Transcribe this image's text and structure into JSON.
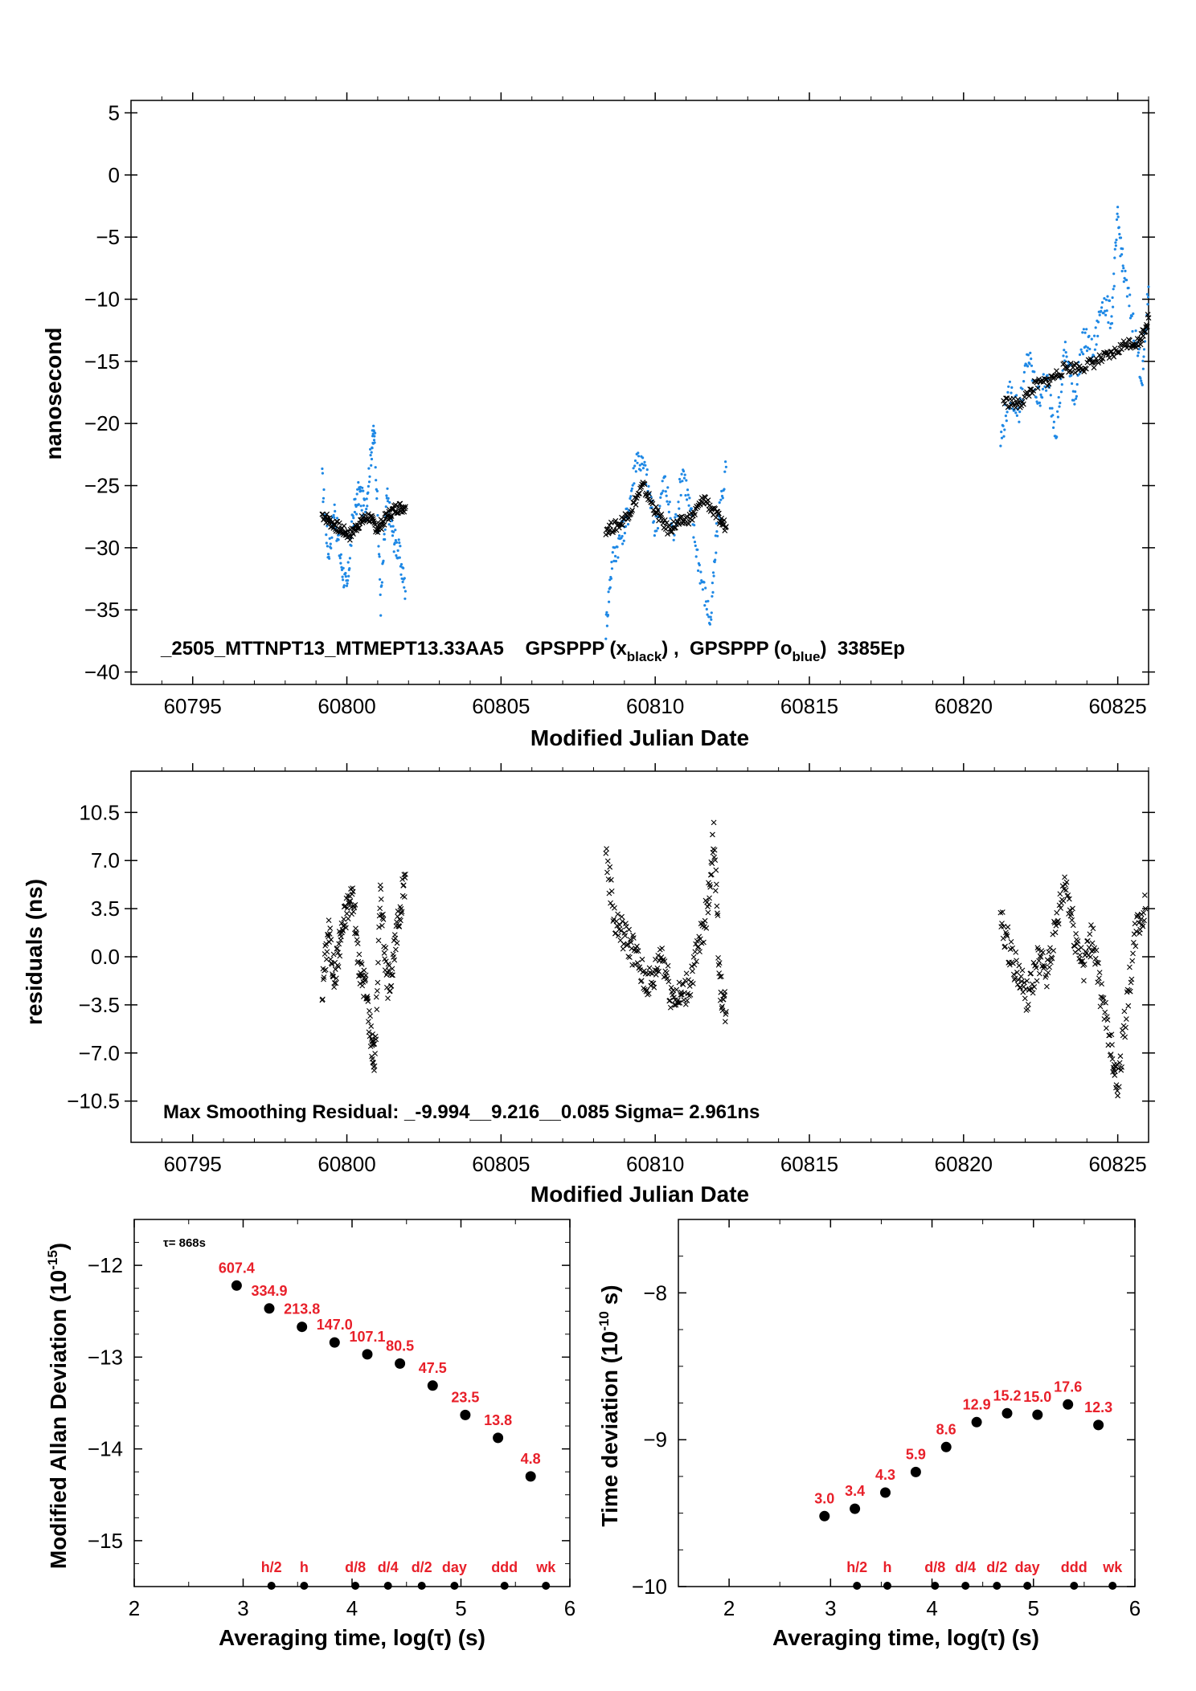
{
  "chart_data": [
    {
      "type": "scatter",
      "title": "",
      "annotation_main": "_2505_MTTNPT13_MTMEPT13.33AA5    GPSPPP (x",
      "annotation_sub1": "black",
      "annotation_mid": ") ,  GPSPPP (o",
      "annotation_sub2": "blue",
      "annotation_end": ")  3385Ep",
      "xlabel": "Modified Julian Date",
      "ylabel": "nanosecond",
      "xlim": [
        60793,
        60826
      ],
      "ylim": [
        -41,
        6
      ],
      "xticks": [
        "60795",
        "60800",
        "60805",
        "60810",
        "60815",
        "60820",
        "60825"
      ],
      "yticks": [
        "5",
        "0",
        "−5",
        "−10",
        "−15",
        "−20",
        "−25",
        "−30",
        "−35",
        "−40"
      ],
      "legend": "none",
      "grid": false,
      "colors": {
        "black": "#000000",
        "blue": "#1e88e5"
      },
      "series": [
        {
          "marker": "x",
          "color": "black",
          "segments": [
            {
              "x": [
                60799.2,
                60799.5,
                60799.8,
                60800.1,
                60800.4,
                60800.7,
                60801.0,
                60801.3,
                60801.6,
                60801.9
              ],
              "y": [
                -27.3,
                -28.0,
                -28.5,
                -29.0,
                -28.0,
                -27.5,
                -28.5,
                -27.5,
                -26.8,
                -26.7
              ]
            },
            {
              "x": [
                60808.4,
                60808.8,
                60809.2,
                60809.6,
                60810.0,
                60810.4,
                60810.8,
                60811.2,
                60811.6,
                60812.0,
                60812.3
              ],
              "y": [
                -28.5,
                -28.2,
                -27.0,
                -25.0,
                -27.0,
                -28.5,
                -28.0,
                -27.5,
                -26.0,
                -27.5,
                -28.3
              ]
            },
            {
              "x": [
                60821.3,
                60821.8,
                60822.3,
                60822.8,
                60823.3,
                60823.8,
                60824.3,
                60824.8,
                60825.3,
                60825.7,
                60826.0
              ],
              "y": [
                -18.2,
                -18.5,
                -17.0,
                -16.5,
                -15.5,
                -15.5,
                -15.0,
                -14.5,
                -13.5,
                -13.5,
                -11.5
              ]
            }
          ]
        },
        {
          "marker": "o",
          "color": "blue",
          "segments": [
            {
              "x": [
                60799.2,
                60799.4,
                60799.6,
                60799.8,
                60800.0,
                60800.2,
                60800.4,
                60800.6,
                60800.8,
                60800.9,
                60801.1,
                60801.3,
                60801.5,
                60801.7,
                60801.9
              ],
              "y": [
                -24.5,
                -30.5,
                -27.0,
                -31.0,
                -33.5,
                -27.5,
                -25.5,
                -27.0,
                -22.0,
                -20.5,
                -34.5,
                -26.0,
                -29.0,
                -30.5,
                -33.5
              ]
            },
            {
              "x": [
                60808.4,
                60808.6,
                60808.9,
                60809.1,
                60809.4,
                60809.7,
                60810.0,
                60810.3,
                60810.6,
                60810.9,
                60811.2,
                60811.5,
                60811.8,
                60812.0,
                60812.3
              ],
              "y": [
                -36.5,
                -31.0,
                -29.0,
                -27.5,
                -22.5,
                -24.0,
                -28.5,
                -24.5,
                -29.0,
                -23.5,
                -28.0,
                -32.5,
                -36.0,
                -28.5,
                -23.5
              ]
            },
            {
              "x": [
                60821.2,
                60821.5,
                60821.8,
                60822.1,
                60822.4,
                60822.7,
                60823.0,
                60823.3,
                60823.6,
                60823.9,
                60824.2,
                60824.5,
                60824.8,
                60825.0,
                60825.2,
                60825.5,
                60825.8,
                60826.0
              ],
              "y": [
                -21.5,
                -17.5,
                -19.0,
                -14.5,
                -18.0,
                -16.5,
                -20.5,
                -14.0,
                -18.0,
                -13.0,
                -14.5,
                -10.0,
                -11.5,
                -3.5,
                -8.0,
                -12.0,
                -16.5,
                -9.0
              ]
            }
          ]
        }
      ]
    },
    {
      "type": "scatter",
      "title": "",
      "annotation": "Max Smoothing Residual: _-9.994__9.216__0.085  Sigma= 2.961ns",
      "xlabel": "Modified Julian Date",
      "ylabel": "residuals (ns)",
      "xlim": [
        60793,
        60826
      ],
      "ylim": [
        -13.5,
        13.5
      ],
      "xticks": [
        "60795",
        "60800",
        "60805",
        "60810",
        "60815",
        "60820",
        "60825"
      ],
      "yticks": [
        "10.5",
        "7.0",
        "3.5",
        "0.0",
        "−3.5",
        "−7.0",
        "−10.5"
      ],
      "ytick_values": [
        10.5,
        7.0,
        3.5,
        0.0,
        -3.5,
        -7.0,
        -10.5
      ],
      "legend": "none",
      "grid": false,
      "series": [
        {
          "marker": "x",
          "color": "black",
          "segments": [
            {
              "x": [
                60799.2,
                60799.4,
                60799.6,
                60799.8,
                60800.0,
                60800.2,
                60800.4,
                60800.6,
                60800.8,
                60800.9,
                60801.1,
                60801.3,
                60801.5,
                60801.7,
                60801.9
              ],
              "y": [
                -2.5,
                2.0,
                -1.5,
                1.5,
                3.5,
                4.5,
                -1.0,
                -2.0,
                -6.0,
                -7.5,
                5.0,
                -2.0,
                -0.5,
                3.0,
                6.0
              ]
            },
            {
              "x": [
                60808.4,
                60808.7,
                60809.0,
                60809.3,
                60809.6,
                60809.9,
                60810.2,
                60810.5,
                60810.8,
                60811.1,
                60811.4,
                60811.7,
                60811.9,
                60812.1,
                60812.3
              ],
              "y": [
                7.5,
                2.5,
                1.5,
                0.5,
                -1.5,
                -2.0,
                0.5,
                -2.5,
                -3.0,
                -2.0,
                0.5,
                3.5,
                9.0,
                -2.0,
                -4.0
              ]
            },
            {
              "x": [
                60821.2,
                60821.5,
                60821.8,
                60822.1,
                60822.4,
                60822.7,
                60823.0,
                60823.3,
                60823.6,
                60823.9,
                60824.2,
                60824.5,
                60824.8,
                60825.0,
                60825.3,
                60825.6,
                60825.9
              ],
              "y": [
                2.5,
                0.5,
                -1.5,
                -3.0,
                -0.5,
                -1.0,
                2.0,
                5.5,
                1.5,
                -0.5,
                1.5,
                -3.5,
                -6.5,
                -9.5,
                -3.5,
                2.0,
                3.5
              ]
            }
          ]
        }
      ]
    },
    {
      "type": "scatter",
      "title": "",
      "tau_label": "τ= 868s",
      "xlabel": "Averaging time, log(τ) (s)",
      "ylabel": "Modified Allan Deviation (10",
      "ylabel_exp": "-15",
      "ylabel_end": ")",
      "xlim": [
        2,
        6
      ],
      "ylim": [
        -15.5,
        -11.5
      ],
      "xticks": [
        "2",
        "3",
        "4",
        "5",
        "6"
      ],
      "yticks": [
        "−12",
        "−13",
        "−14",
        "−15"
      ],
      "x": [
        2.94,
        3.24,
        3.54,
        3.84,
        4.14,
        4.44,
        4.74,
        5.04,
        5.34,
        5.64
      ],
      "y": [
        -12.22,
        -12.47,
        -12.67,
        -12.84,
        -12.97,
        -13.07,
        -13.31,
        -13.63,
        -13.88,
        -14.3
      ],
      "point_labels": [
        "607.4",
        "334.9",
        "213.8",
        "147.0",
        "107.1",
        "80.5",
        "47.5",
        "23.5",
        "13.8",
        "4.8"
      ],
      "reference_x": [
        3.26,
        3.56,
        4.03,
        4.33,
        4.64,
        4.94,
        5.4,
        5.78
      ],
      "reference_labels": [
        "h/2",
        "h",
        "d/8",
        "d/4",
        "d/2",
        "day",
        "ddd",
        "wk"
      ],
      "label_color": "#e8202a"
    },
    {
      "type": "scatter",
      "title": "",
      "xlabel": "Averaging time, log(τ) (s)",
      "ylabel": "Time deviation (10",
      "ylabel_exp": "-10",
      "ylabel_end": " s)",
      "xlim": [
        1.5,
        6
      ],
      "ylim": [
        -10,
        -7.5
      ],
      "xticks": [
        "2",
        "3",
        "4",
        "5",
        "6"
      ],
      "yticks": [
        "−8",
        "−9",
        "−10"
      ],
      "x": [
        2.94,
        3.24,
        3.54,
        3.84,
        4.14,
        4.44,
        4.74,
        5.04,
        5.34,
        5.64
      ],
      "y": [
        -9.52,
        -9.47,
        -9.36,
        -9.22,
        -9.05,
        -8.88,
        -8.82,
        -8.83,
        -8.76,
        -8.9
      ],
      "point_labels": [
        "3.0",
        "3.4",
        "4.3",
        "5.9",
        "8.6",
        "12.9",
        "15.2",
        "15.0",
        "17.6",
        "12.3"
      ],
      "reference_x": [
        3.26,
        3.56,
        4.03,
        4.33,
        4.64,
        4.94,
        5.4,
        5.78
      ],
      "reference_labels": [
        "h/2",
        "h",
        "d/8",
        "d/4",
        "d/2",
        "day",
        "ddd",
        "wk"
      ],
      "label_color": "#e8202a"
    }
  ]
}
